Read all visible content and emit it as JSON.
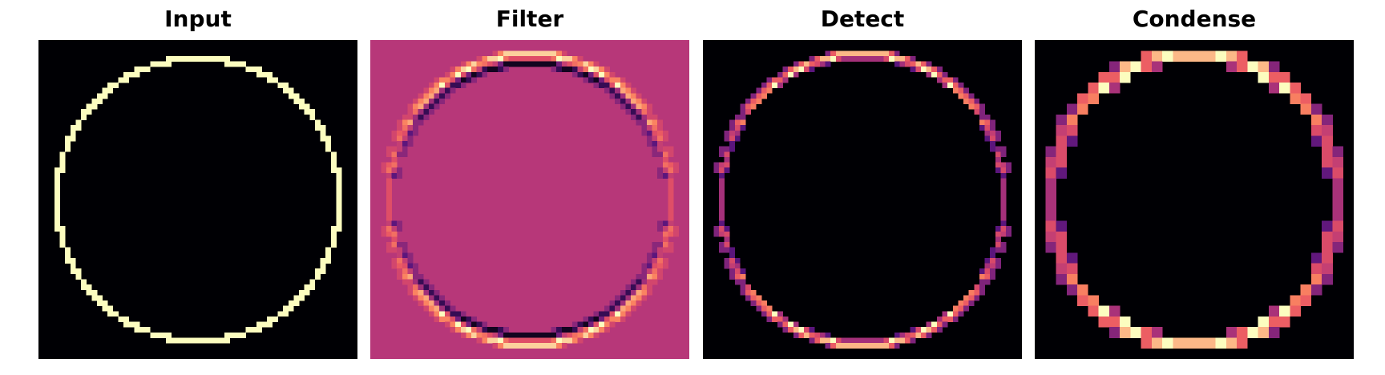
{
  "panels": [
    {
      "id": "input",
      "title": "Input"
    },
    {
      "id": "filter",
      "title": "Filter"
    },
    {
      "id": "detect",
      "title": "Detect"
    },
    {
      "id": "condense",
      "title": "Condense"
    }
  ],
  "colormap": "magma",
  "colors": {
    "black": "#000004",
    "deep_purple": "#51127c",
    "magenta": "#b73779",
    "coral": "#e75263",
    "salmon": "#fc8961",
    "light_yellow": "#fcfdbf"
  }
}
